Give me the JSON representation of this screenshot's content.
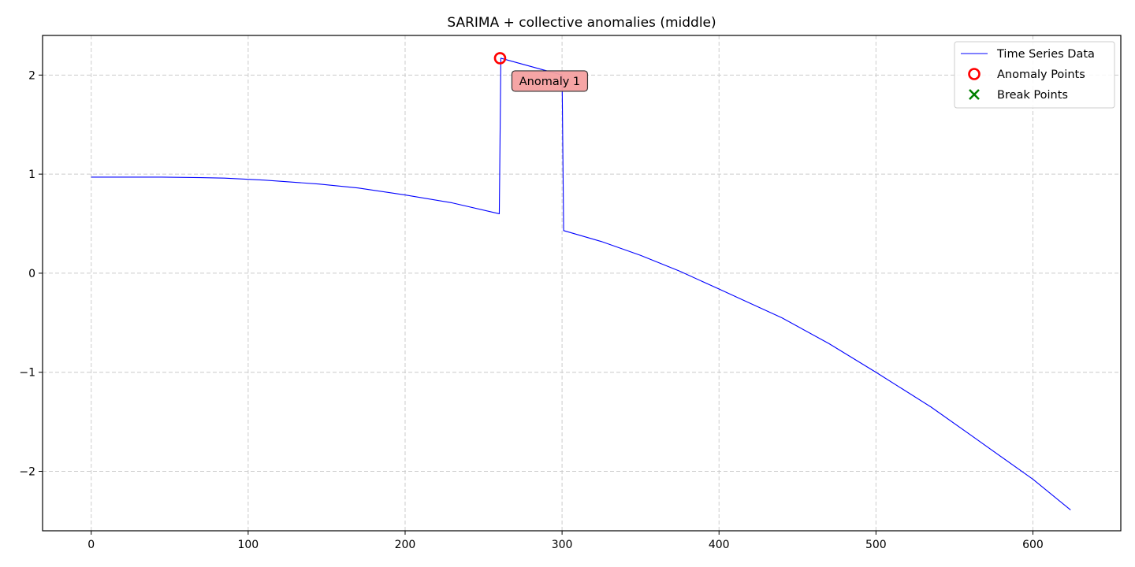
{
  "chart_data": {
    "type": "line",
    "title": "SARIMA + collective anomalies (middle)",
    "xlabel": "",
    "ylabel": "",
    "xlim": [
      -31,
      656
    ],
    "ylim": [
      -2.6,
      2.4
    ],
    "xticks": [
      0,
      100,
      200,
      300,
      400,
      500,
      600
    ],
    "yticks": [
      -2,
      -1,
      0,
      1,
      2
    ],
    "grid": true,
    "legend_position": "top-right",
    "series": [
      {
        "name": "Time Series Data",
        "kind": "line",
        "color": "#0000ff",
        "x": [
          0,
          25,
          45,
          70,
          85,
          110,
          145,
          170,
          200,
          230,
          260,
          261,
          300,
          301,
          325,
          350,
          375,
          400,
          440,
          470,
          500,
          535,
          560,
          600,
          624
        ],
        "y": [
          0.97,
          0.97,
          0.97,
          0.965,
          0.96,
          0.94,
          0.9,
          0.86,
          0.79,
          0.71,
          0.6,
          2.17,
          2.0,
          0.43,
          0.32,
          0.18,
          0.02,
          -0.16,
          -0.45,
          -0.71,
          -1.0,
          -1.35,
          -1.63,
          -2.08,
          -2.39
        ]
      },
      {
        "name": "Anomaly Points",
        "kind": "scatter",
        "marker": "open-circle",
        "color": "#ff0000",
        "x": [
          260.5
        ],
        "y": [
          2.17
        ]
      },
      {
        "name": "Break Points",
        "kind": "scatter",
        "marker": "x",
        "color": "#008000",
        "x": [],
        "y": []
      }
    ],
    "annotations": [
      {
        "text": "Anomaly 1",
        "x": 261,
        "y": 2.17,
        "box_color": "#f4a0a0"
      }
    ]
  }
}
